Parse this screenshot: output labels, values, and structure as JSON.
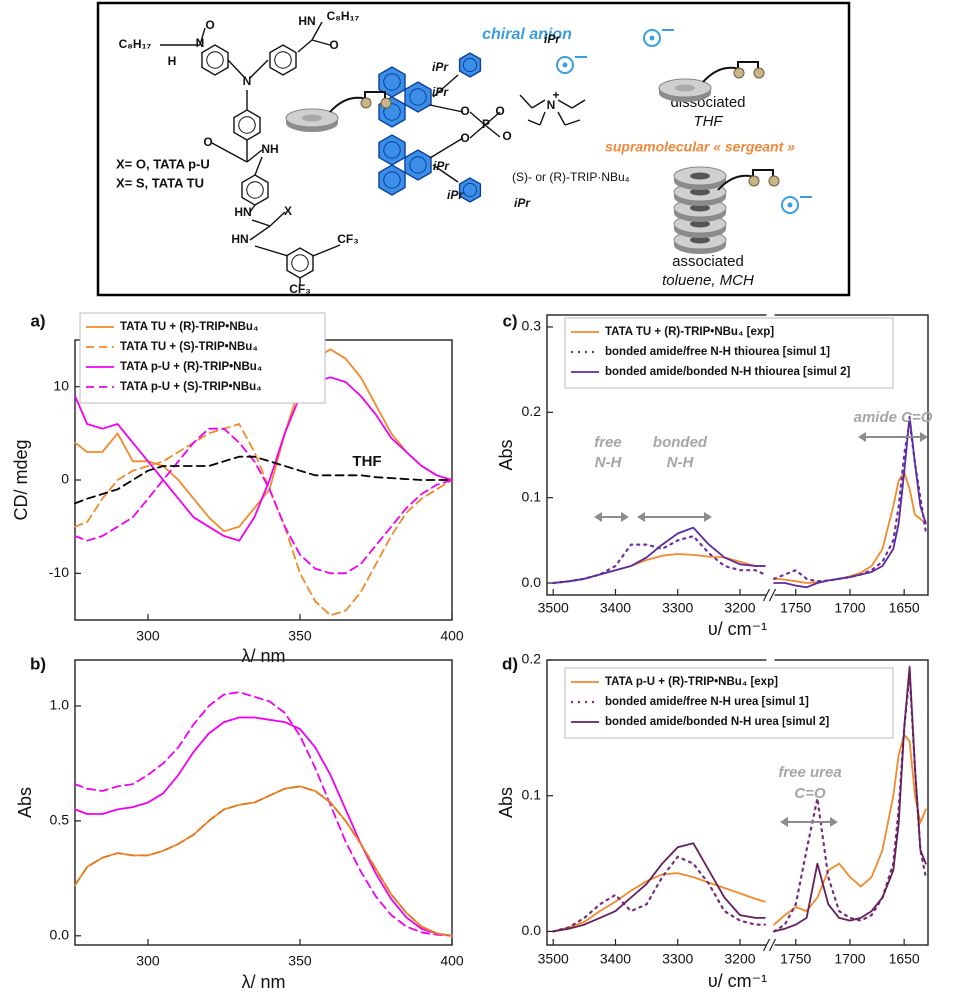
{
  "scheme": {
    "chiral_anion": "chiral anion",
    "dissociated": "dissociated",
    "dissociated_solvent": "THF",
    "sergeant": "supramolecular « sergeant »",
    "associated": "associated",
    "associated_solvents": "toluene, MCH",
    "tata_o": "X= O, TATA p-U",
    "tata_s": "X= S, TATA TU",
    "trip": "(S)- or (R)-TRIP·NBu₄",
    "structure_labels": [
      "C₈H₁₇",
      "N",
      "H",
      "HN",
      "C₈H₁₇",
      "O",
      "O",
      "N",
      "O",
      "NH",
      "HN",
      "X",
      "HN",
      "CF₃",
      "CF₃",
      "iPr",
      "iPr",
      "iPr",
      "iPr",
      "iPr",
      "iPr",
      "O",
      "P",
      "O",
      "O",
      "O",
      "N",
      "+"
    ]
  },
  "chart_data": [
    {
      "type": "line",
      "panel_label": "a)",
      "xlabel": "λ/ nm",
      "ylabel": "CD/ mdeg",
      "xlim": [
        276,
        400
      ],
      "xticks": [
        300,
        350,
        400
      ],
      "ylim": [
        -15,
        15
      ],
      "yticks": [
        -10,
        0,
        10
      ],
      "legend": "upper left",
      "annotations": [
        "THF"
      ],
      "x": [
        276,
        280,
        285,
        290,
        295,
        300,
        305,
        310,
        315,
        320,
        325,
        330,
        335,
        340,
        345,
        350,
        355,
        360,
        365,
        370,
        375,
        380,
        385,
        390,
        395,
        400
      ],
      "series": [
        {
          "name": "TATA TU + (R)-TRIP•NBu₄",
          "color": "#f28a2a",
          "dash": "solid",
          "values": [
            4,
            3,
            3,
            5,
            2,
            2,
            1.5,
            0,
            -2,
            -4,
            -5.5,
            -5,
            -3,
            -1,
            5,
            10,
            13,
            14,
            13,
            11,
            8,
            5,
            3,
            1.5,
            0.5,
            0
          ]
        },
        {
          "name": "TATA TU + (S)-TRIP•NBu₄",
          "color": "#f28a2a",
          "dash": "dashed",
          "values": [
            -5,
            -4.5,
            -2,
            0,
            1,
            1.5,
            2,
            3,
            4,
            5,
            5.5,
            6,
            3,
            -1,
            -5,
            -10,
            -13,
            -14.5,
            -14,
            -12,
            -9,
            -6,
            -3.5,
            -2,
            -1,
            0
          ]
        },
        {
          "name": "TATA p-U + (R)-TRIP•NBu₄",
          "color": "#f000f0",
          "dash": "solid",
          "values": [
            9,
            6,
            5.5,
            6,
            4,
            2,
            0,
            -2,
            -4,
            -5,
            -6,
            -6.5,
            -4,
            0,
            5,
            9,
            10.5,
            11,
            10.5,
            9,
            7,
            4.5,
            3,
            1.5,
            0.5,
            0
          ]
        },
        {
          "name": "TATA p-U + (S)-TRIP•NBu₄",
          "color": "#f000f0",
          "dash": "dashed",
          "values": [
            -6,
            -6.5,
            -6,
            -5,
            -4,
            -2,
            0,
            2,
            4,
            5.5,
            5.5,
            4,
            2,
            -1,
            -5,
            -8,
            -9.5,
            -10,
            -10,
            -9,
            -7,
            -5,
            -3,
            -1.5,
            -0.5,
            0
          ]
        },
        {
          "color": "#000000",
          "dash": "dashed",
          "values": [
            -2.5,
            -2,
            -1.5,
            -1,
            0,
            1,
            1.5,
            1.5,
            1.5,
            1.5,
            2,
            2.5,
            2.5,
            2,
            1.5,
            1,
            0.5,
            0.5,
            0.5,
            0.5,
            0.3,
            0.2,
            0.1,
            0,
            0,
            0
          ]
        }
      ]
    },
    {
      "type": "line",
      "panel_label": "b)",
      "xlabel": "λ/ nm",
      "ylabel": "Abs",
      "xlim": [
        276,
        400
      ],
      "xticks": [
        300,
        350,
        400
      ],
      "ylim": [
        -0.04,
        1.2
      ],
      "yticks": [
        {
          "value": 0,
          "label": "0.0"
        },
        {
          "value": 0.5,
          "label": "0.5"
        },
        {
          "value": 1,
          "label": "1.0"
        }
      ],
      "x": [
        276,
        280,
        285,
        290,
        295,
        300,
        305,
        310,
        315,
        320,
        325,
        330,
        335,
        340,
        345,
        350,
        355,
        360,
        365,
        370,
        375,
        380,
        385,
        390,
        395,
        400
      ],
      "series": [
        {
          "color": "#f000f0",
          "dash": "solid",
          "values": [
            0.55,
            0.53,
            0.53,
            0.55,
            0.56,
            0.58,
            0.62,
            0.7,
            0.8,
            0.88,
            0.93,
            0.95,
            0.95,
            0.94,
            0.93,
            0.9,
            0.82,
            0.7,
            0.55,
            0.4,
            0.27,
            0.16,
            0.08,
            0.03,
            0.01,
            0
          ]
        },
        {
          "color": "#f000f0",
          "dash": "dashed",
          "values": [
            0.66,
            0.64,
            0.63,
            0.65,
            0.66,
            0.7,
            0.75,
            0.82,
            0.92,
            1,
            1.05,
            1.06,
            1.04,
            1.02,
            0.97,
            0.87,
            0.73,
            0.57,
            0.41,
            0.28,
            0.17,
            0.09,
            0.04,
            0.015,
            0.005,
            0
          ]
        },
        {
          "color": "#f28a2a",
          "dash": "solid",
          "values": [
            0.22,
            0.3,
            0.34,
            0.36,
            0.35,
            0.35,
            0.37,
            0.4,
            0.44,
            0.5,
            0.55,
            0.57,
            0.58,
            0.61,
            0.64,
            0.65,
            0.63,
            0.58,
            0.5,
            0.4,
            0.29,
            0.18,
            0.1,
            0.04,
            0.01,
            0
          ]
        },
        {
          "color": "#e07a20",
          "dash": "dashed",
          "values": [
            0.22,
            0.3,
            0.34,
            0.36,
            0.35,
            0.35,
            0.37,
            0.4,
            0.44,
            0.5,
            0.55,
            0.57,
            0.58,
            0.61,
            0.64,
            0.65,
            0.63,
            0.58,
            0.5,
            0.4,
            0.29,
            0.18,
            0.1,
            0.04,
            0.01,
            0
          ]
        }
      ]
    },
    {
      "type": "line",
      "panel_label": "c)",
      "xlabel": "υ/ cm⁻¹",
      "ylabel": "Abs",
      "x_segments": [
        {
          "xlim": [
            3510,
            3155
          ],
          "xticks": [
            3500,
            3400,
            3300,
            3200
          ]
        },
        {
          "xlim": [
            1771,
            1628
          ],
          "xticks": [
            1750,
            1700,
            1650
          ]
        }
      ],
      "ylim": [
        -0.014,
        0.314
      ],
      "yticks": [
        {
          "value": 0,
          "label": "0.0"
        },
        {
          "value": 0.1,
          "label": "0.1"
        },
        {
          "value": 0.2,
          "label": "0.2"
        },
        {
          "value": 0.3,
          "label": "0.3"
        }
      ],
      "legend": "upper left",
      "annotations": [
        "free",
        "N-H",
        "bonded",
        "N-H",
        "amide C=O"
      ],
      "x": [
        3500,
        3475,
        3450,
        3425,
        3400,
        3375,
        3350,
        3325,
        3300,
        3275,
        3250,
        3225,
        3200,
        3175,
        3160,
        1770,
        1760,
        1750,
        1740,
        1730,
        1720,
        1710,
        1700,
        1690,
        1680,
        1670,
        1660,
        1655,
        1650,
        1645,
        1640,
        1635,
        1630
      ],
      "series": [
        {
          "name": "TATA TU + (R)-TRIP•NBu₄ [exp]",
          "color": "#f28a2a",
          "dash": "solid",
          "values": [
            0,
            0.002,
            0.005,
            0.01,
            0.015,
            0.02,
            0.027,
            0.032,
            0.034,
            0.033,
            0.031,
            0.03,
            0.025,
            0.02,
            0.02,
            0.005,
            0.004,
            0.002,
            0,
            0.001,
            0.003,
            0.005,
            0.008,
            0.012,
            0.02,
            0.04,
            0.09,
            0.12,
            0.13,
            0.11,
            0.08,
            0.075,
            0.07
          ]
        },
        {
          "name": "bonded amide/free N-H thiourea [simul 1]",
          "color": "#7030a0",
          "dash": "dotted",
          "values": [
            0,
            0.002,
            0.005,
            0.01,
            0.02,
            0.045,
            0.045,
            0.04,
            0.05,
            0.055,
            0.035,
            0.02,
            0.015,
            0.015,
            0.01,
            0.005,
            0.01,
            0.015,
            0.005,
            0.002,
            0.003,
            0.005,
            0.007,
            0.01,
            0.015,
            0.025,
            0.05,
            0.09,
            0.15,
            0.19,
            0.14,
            0.1,
            0.06
          ]
        },
        {
          "name": "bonded amide/bonded N-H thiourea [simul 2]",
          "color": "#5b2ca0",
          "dash": "solid",
          "values": [
            0,
            0.002,
            0.005,
            0.01,
            0.015,
            0.02,
            0.03,
            0.045,
            0.058,
            0.065,
            0.045,
            0.03,
            0.022,
            0.02,
            0.02,
            0,
            0,
            -0.003,
            -0.005,
            0,
            0.003,
            0.005,
            0.007,
            0.01,
            0.013,
            0.02,
            0.04,
            0.07,
            0.13,
            0.195,
            0.14,
            0.09,
            0.07
          ]
        }
      ]
    },
    {
      "type": "line",
      "panel_label": "d)",
      "xlabel": "υ/ cm⁻¹",
      "ylabel": "Abs",
      "x_segments": [
        {
          "xlim": [
            3510,
            3155
          ],
          "xticks": [
            3500,
            3400,
            3300,
            3200
          ]
        },
        {
          "xlim": [
            1771,
            1628
          ],
          "xticks": [
            1750,
            1700,
            1650
          ]
        }
      ],
      "ylim": [
        -0.01,
        0.2
      ],
      "yticks": [
        {
          "value": 0,
          "label": "0.0"
        },
        {
          "value": 0.1,
          "label": "0.1"
        },
        {
          "value": 0.2,
          "label": "0.2"
        }
      ],
      "legend": "upper left",
      "annotations": [
        "free urea",
        "C=O"
      ],
      "x": [
        3500,
        3475,
        3450,
        3425,
        3400,
        3375,
        3350,
        3325,
        3300,
        3275,
        3250,
        3225,
        3200,
        3175,
        3160,
        1770,
        1760,
        1750,
        1740,
        1730,
        1720,
        1710,
        1700,
        1690,
        1680,
        1670,
        1660,
        1655,
        1650,
        1645,
        1640,
        1635,
        1630
      ],
      "series": [
        {
          "name": "TATA p-U + (R)-TRIP•NBu₄ [exp]",
          "color": "#f28a2a",
          "dash": "solid",
          "values": [
            0,
            0.003,
            0.007,
            0.015,
            0.022,
            0.03,
            0.037,
            0.042,
            0.043,
            0.04,
            0.036,
            0.032,
            0.028,
            0.024,
            0.022,
            0.005,
            0.012,
            0.018,
            0.015,
            0.025,
            0.045,
            0.05,
            0.04,
            0.033,
            0.04,
            0.06,
            0.1,
            0.13,
            0.145,
            0.14,
            0.1,
            0.08,
            0.09
          ]
        },
        {
          "name": "bonded amide/free N-H urea [simul 1]",
          "color": "#7a2a7a",
          "dash": "dotted",
          "values": [
            0,
            0.003,
            0.01,
            0.02,
            0.027,
            0.015,
            0.02,
            0.04,
            0.055,
            0.05,
            0.035,
            0.015,
            0.008,
            0.005,
            0.005,
            0,
            0.005,
            0.02,
            0.06,
            0.098,
            0.04,
            0.015,
            0.01,
            0.008,
            0.012,
            0.025,
            0.05,
            0.09,
            0.15,
            0.19,
            0.12,
            0.06,
            0.04
          ]
        },
        {
          "name": "bonded amide/bonded N-H urea [simul 2]",
          "color": "#651f5c",
          "dash": "solid",
          "values": [
            0,
            0.002,
            0.005,
            0.01,
            0.015,
            0.025,
            0.035,
            0.05,
            0.062,
            0.065,
            0.045,
            0.025,
            0.012,
            0.01,
            0.01,
            0,
            0.002,
            0.005,
            0.01,
            0.05,
            0.02,
            0.01,
            0.008,
            0.01,
            0.015,
            0.025,
            0.045,
            0.08,
            0.15,
            0.195,
            0.12,
            0.06,
            0.05
          ]
        }
      ]
    }
  ]
}
